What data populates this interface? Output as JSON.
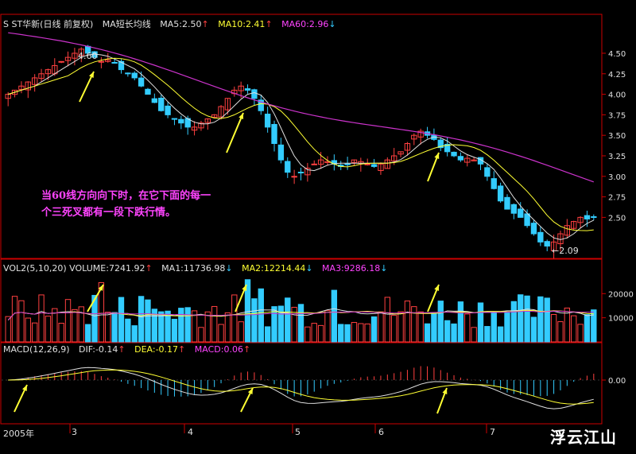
{
  "header": {
    "name": "S ST华新(日线 前复权)",
    "ma_title": "MA短长均线",
    "ma5": "MA5:2.50",
    "ma5_arrow": "↑",
    "ma10": "MA10:2.41",
    "ma10_arrow": "↑",
    "ma60": "MA60:2.96",
    "ma60_arrow": "↓"
  },
  "vol_header": {
    "title": "VOL2(5,10,20) VOLUME:7241.92",
    "title_arrow": "↑",
    "ma1": "MA1:11736.98",
    "ma1_arrow": "↓",
    "ma2": "MA2:12214.44",
    "ma2_arrow": "↓",
    "ma3": "MA3:9286.18",
    "ma3_arrow": "↓"
  },
  "macd_header": {
    "title": "MACD(12,26,9)",
    "dif": "DIF:-0.14",
    "dif_arrow": "↑",
    "dea": "DEA:-0.17",
    "dea_arrow": "↑",
    "macd": "MACD:0.06",
    "macd_arrow": "↑"
  },
  "annotation": {
    "line1": "当60线方向向下时，在它下面的每一",
    "line2": "个三死叉都有一段下跌行情。"
  },
  "markers": {
    "high": "4.60",
    "low": "←2.09"
  },
  "x_labels": [
    "2005年",
    "3",
    "4",
    "5",
    "6",
    "7"
  ],
  "watermark": "浮云江山",
  "colors": {
    "up": "#ff4040",
    "down": "#33ccff",
    "ma5": "#e0e0e0",
    "ma10": "#ffff33",
    "ma60": "#cc33cc",
    "axis": "#cc0000"
  },
  "chart_data": [
    {
      "type": "candlestick",
      "title": "S ST华新(日线 前复权)",
      "y_ticks": [
        4.5,
        4.25,
        4.0,
        3.75,
        3.5,
        3.25,
        3.0,
        2.75,
        2.5
      ],
      "ylim": [
        2.0,
        4.8
      ],
      "high": 4.6,
      "low": 2.09,
      "ma_series": [
        {
          "name": "MA5",
          "last": 2.5
        },
        {
          "name": "MA10",
          "last": 2.41
        },
        {
          "name": "MA60",
          "last": 2.96
        }
      ],
      "approx_close": [
        4.0,
        4.05,
        4.1,
        4.15,
        4.2,
        4.25,
        4.3,
        4.35,
        4.4,
        4.45,
        4.5,
        4.55,
        4.5,
        4.45,
        4.4,
        4.42,
        4.38,
        4.3,
        4.25,
        4.2,
        4.1,
        4.0,
        3.9,
        3.8,
        3.75,
        3.7,
        3.65,
        3.6,
        3.6,
        3.65,
        3.7,
        3.75,
        3.85,
        3.95,
        4.05,
        4.1,
        4.05,
        3.95,
        3.8,
        3.6,
        3.4,
        3.2,
        3.05,
        3.0,
        3.05,
        3.1,
        3.15,
        3.2,
        3.18,
        3.15,
        3.12,
        3.15,
        3.2,
        3.18,
        3.15,
        3.12,
        3.15,
        3.2,
        3.25,
        3.3,
        3.4,
        3.5,
        3.55,
        3.5,
        3.45,
        3.35,
        3.3,
        3.25,
        3.2,
        3.22,
        3.2,
        3.15,
        3.0,
        2.85,
        2.7,
        2.6,
        2.55,
        2.5,
        2.4,
        2.3,
        2.2,
        2.15,
        2.2,
        2.3,
        2.4,
        2.45,
        2.5,
        2.48,
        2.5
      ]
    },
    {
      "type": "bar",
      "title": "VOL2(5,10,20)",
      "y_ticks": [
        20000,
        10000
      ],
      "ylim": [
        0,
        28000
      ],
      "last_volume": 7241.92,
      "ma_series": [
        {
          "name": "MA1",
          "last": 11736.98
        },
        {
          "name": "MA2",
          "last": 12214.44
        },
        {
          "name": "MA3",
          "last": 9286.18
        }
      ]
    },
    {
      "type": "bar",
      "title": "MACD(12,26,9)",
      "y_ticks": [
        0.0
      ],
      "dif": -0.14,
      "dea": -0.17,
      "macd": 0.06
    }
  ],
  "y_tick_labels": {
    "price": [
      "4.50",
      "4.25",
      "4.00",
      "3.75",
      "3.50",
      "3.25",
      "3.00",
      "2.75",
      "2.50"
    ],
    "volume": [
      "20000",
      "10000"
    ],
    "macd": [
      "0.00"
    ]
  }
}
